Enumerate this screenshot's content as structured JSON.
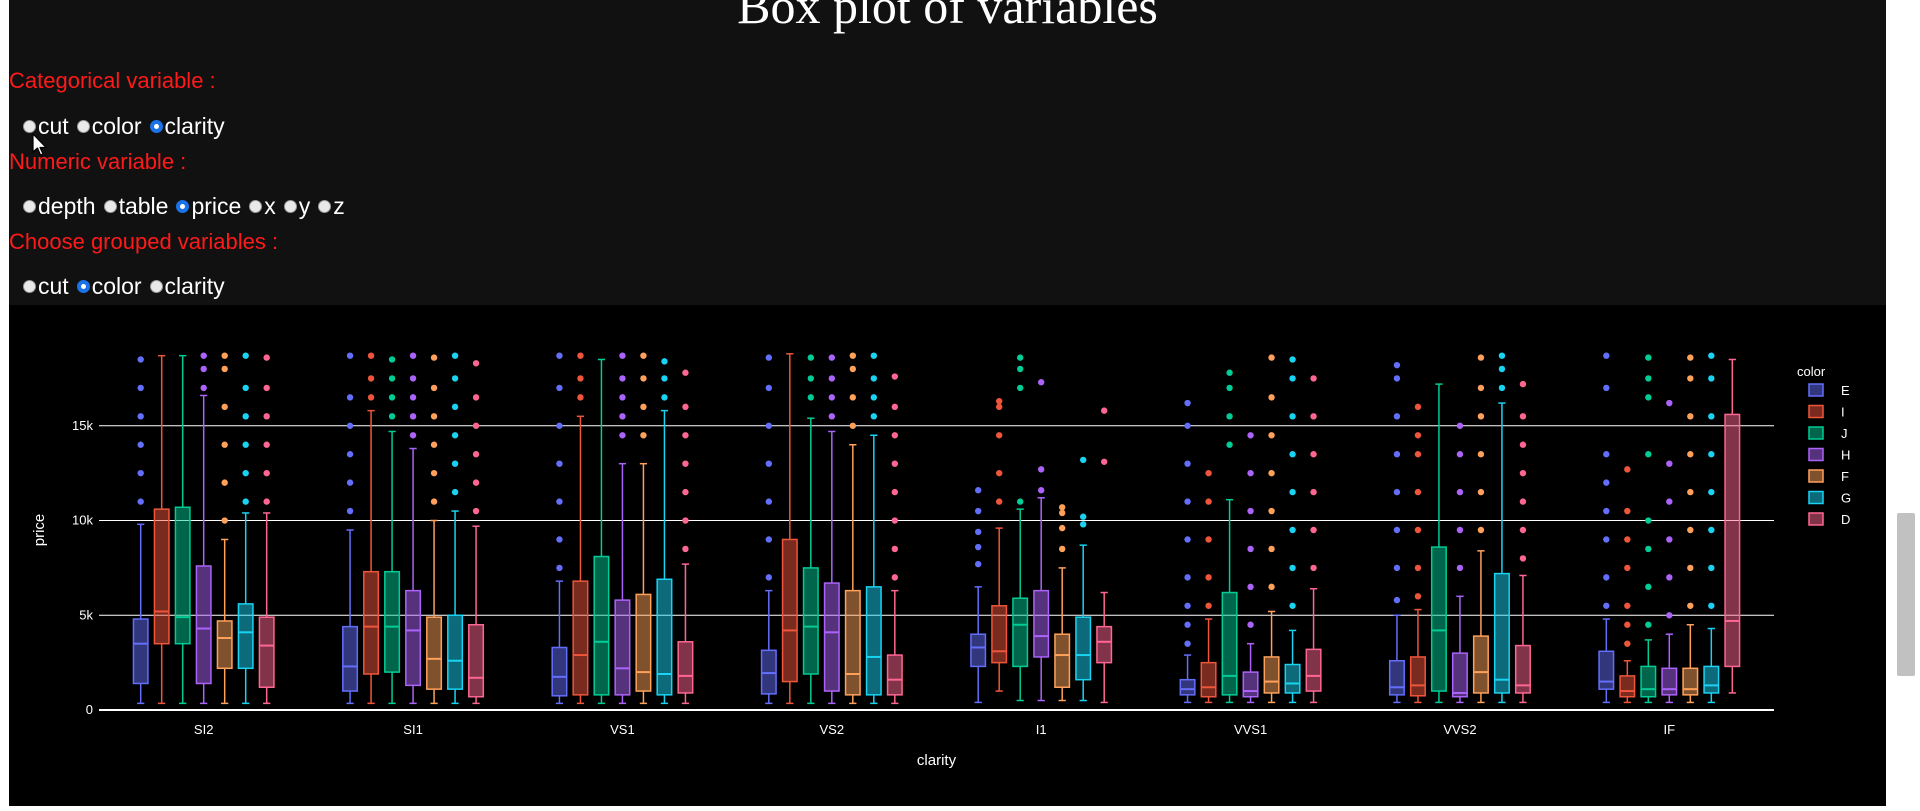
{
  "page": {
    "title": "Box plot of variables",
    "categorical_label": "Categorical variable :",
    "categorical_options": [
      "cut",
      "color",
      "clarity"
    ],
    "categorical_selected": "clarity",
    "numeric_label": "Numeric variable :",
    "numeric_options": [
      "depth",
      "table",
      "price",
      "x",
      "y",
      "z"
    ],
    "numeric_selected": "price",
    "group_label": "Choose grouped variables :",
    "group_options": [
      "cut",
      "color",
      "clarity"
    ],
    "group_selected": "color"
  },
  "chart_data": {
    "type": "box",
    "xlabel": "clarity",
    "ylabel": "price",
    "legend_title": "color",
    "legend_position": "top-right",
    "grid": true,
    "ylim": [
      0,
      19000
    ],
    "yticks": [
      0,
      5000,
      10000,
      15000
    ],
    "ytick_labels": [
      "0",
      "5k",
      "10k",
      "15k"
    ],
    "categories": [
      "SI2",
      "SI1",
      "VS1",
      "VS2",
      "I1",
      "VVS1",
      "VVS2",
      "IF"
    ],
    "series": [
      {
        "name": "E",
        "color": "#636efa",
        "boxes": [
          {
            "q1": 1400,
            "median": 3500,
            "q3": 4800,
            "lower": 350,
            "upper": 9800,
            "outliers": [
              11000,
              12500,
              14000,
              15500,
              17000,
              18500
            ]
          },
          {
            "q1": 1000,
            "median": 2300,
            "q3": 4400,
            "lower": 350,
            "upper": 9500,
            "outliers": [
              10500,
              12000,
              13500,
              15000,
              16500,
              18700
            ]
          },
          {
            "q1": 750,
            "median": 1750,
            "q3": 3300,
            "lower": 350,
            "upper": 6800,
            "outliers": [
              7500,
              9000,
              11000,
              13000,
              15000,
              17000,
              18700
            ]
          },
          {
            "q1": 850,
            "median": 1950,
            "q3": 3150,
            "lower": 350,
            "upper": 6300,
            "outliers": [
              7000,
              9000,
              11000,
              13000,
              15000,
              17000,
              18600
            ]
          },
          {
            "q1": 2300,
            "median": 3300,
            "q3": 4000,
            "lower": 400,
            "upper": 6500,
            "outliers": [
              7700,
              8600,
              9400,
              10500,
              11600
            ]
          },
          {
            "q1": 800,
            "median": 1100,
            "q3": 1600,
            "lower": 400,
            "upper": 2900,
            "outliers": [
              3500,
              4500,
              5500,
              7000,
              9000,
              11000,
              13000,
              15000,
              16200
            ]
          },
          {
            "q1": 800,
            "median": 1200,
            "q3": 2600,
            "lower": 400,
            "upper": 5000,
            "outliers": [
              5800,
              7500,
              9500,
              11500,
              13500,
              15500,
              17500,
              18200
            ]
          },
          {
            "q1": 1100,
            "median": 1500,
            "q3": 3100,
            "lower": 400,
            "upper": 4800,
            "outliers": [
              5500,
              7000,
              9000,
              10500,
              12000,
              13500,
              17000,
              18700
            ]
          }
        ]
      },
      {
        "name": "I",
        "color": "#ef553b",
        "boxes": [
          {
            "q1": 3500,
            "median": 5200,
            "q3": 10600,
            "lower": 350,
            "upper": 18700,
            "outliers": []
          },
          {
            "q1": 1900,
            "median": 4400,
            "q3": 7300,
            "lower": 350,
            "upper": 15800,
            "outliers": [
              16500,
              17500,
              18700
            ]
          },
          {
            "q1": 800,
            "median": 2900,
            "q3": 6800,
            "lower": 350,
            "upper": 15500,
            "outliers": [
              16500,
              17500,
              18700
            ]
          },
          {
            "q1": 1500,
            "median": 4200,
            "q3": 9000,
            "lower": 350,
            "upper": 18800,
            "outliers": []
          },
          {
            "q1": 2500,
            "median": 3100,
            "q3": 5500,
            "lower": 1000,
            "upper": 9600,
            "outliers": [
              11000,
              12500,
              14500,
              16000,
              16300
            ]
          },
          {
            "q1": 700,
            "median": 1200,
            "q3": 2500,
            "lower": 400,
            "upper": 4800,
            "outliers": [
              5500,
              7000,
              9000,
              11000,
              12500
            ]
          },
          {
            "q1": 750,
            "median": 1300,
            "q3": 2800,
            "lower": 400,
            "upper": 5300,
            "outliers": [
              6000,
              7500,
              9500,
              11500,
              13500,
              14500,
              16000
            ]
          },
          {
            "q1": 700,
            "median": 1000,
            "q3": 1800,
            "lower": 400,
            "upper": 2600,
            "outliers": [
              3500,
              4500,
              5500,
              7500,
              9000,
              10500,
              12700
            ]
          }
        ]
      },
      {
        "name": "J",
        "color": "#00cc96",
        "boxes": [
          {
            "q1": 3500,
            "median": 4900,
            "q3": 10700,
            "lower": 350,
            "upper": 18700,
            "outliers": []
          },
          {
            "q1": 2000,
            "median": 4400,
            "q3": 7300,
            "lower": 350,
            "upper": 14700,
            "outliers": [
              15500,
              16500,
              17500,
              18500
            ]
          },
          {
            "q1": 800,
            "median": 3600,
            "q3": 8100,
            "lower": 350,
            "upper": 18500,
            "outliers": []
          },
          {
            "q1": 1900,
            "median": 4400,
            "q3": 7500,
            "lower": 350,
            "upper": 15400,
            "outliers": [
              16500,
              17500,
              18600
            ]
          },
          {
            "q1": 2300,
            "median": 4500,
            "q3": 5900,
            "lower": 500,
            "upper": 10600,
            "outliers": [
              11000,
              17000,
              18000,
              18600
            ]
          },
          {
            "q1": 800,
            "median": 1800,
            "q3": 6200,
            "lower": 400,
            "upper": 11100,
            "outliers": [
              14000,
              15500,
              17000,
              17800
            ]
          },
          {
            "q1": 1000,
            "median": 4200,
            "q3": 8600,
            "lower": 400,
            "upper": 17200,
            "outliers": []
          },
          {
            "q1": 700,
            "median": 1100,
            "q3": 2300,
            "lower": 400,
            "upper": 3700,
            "outliers": [
              4500,
              6500,
              8500,
              10000,
              13500,
              16500,
              17500,
              18600
            ]
          }
        ]
      },
      {
        "name": "H",
        "color": "#ab63fa",
        "boxes": [
          {
            "q1": 1400,
            "median": 4300,
            "q3": 7600,
            "lower": 350,
            "upper": 16600,
            "outliers": [
              17000,
              18000,
              18700
            ]
          },
          {
            "q1": 1300,
            "median": 4200,
            "q3": 6300,
            "lower": 350,
            "upper": 13800,
            "outliers": [
              14500,
              15500,
              16500,
              17500,
              18700
            ]
          },
          {
            "q1": 800,
            "median": 2200,
            "q3": 5800,
            "lower": 350,
            "upper": 13000,
            "outliers": [
              14500,
              15500,
              16500,
              17500,
              18700
            ]
          },
          {
            "q1": 1000,
            "median": 4100,
            "q3": 6700,
            "lower": 350,
            "upper": 14700,
            "outliers": [
              15500,
              16500,
              17500,
              18600
            ]
          },
          {
            "q1": 2800,
            "median": 3900,
            "q3": 6300,
            "lower": 500,
            "upper": 11200,
            "outliers": [
              11600,
              12700,
              17300
            ]
          },
          {
            "q1": 700,
            "median": 1000,
            "q3": 2000,
            "lower": 400,
            "upper": 3500,
            "outliers": [
              4500,
              6500,
              8500,
              10500,
              12500,
              14500
            ]
          },
          {
            "q1": 700,
            "median": 900,
            "q3": 3000,
            "lower": 400,
            "upper": 6000,
            "outliers": [
              7500,
              9500,
              11500,
              13500,
              15000
            ]
          },
          {
            "q1": 800,
            "median": 1100,
            "q3": 2200,
            "lower": 400,
            "upper": 4000,
            "outliers": [
              5000,
              7000,
              9000,
              11000,
              13000,
              16200
            ]
          }
        ]
      },
      {
        "name": "F",
        "color": "#ffa15a",
        "boxes": [
          {
            "q1": 2200,
            "median": 3800,
            "q3": 4700,
            "lower": 350,
            "upper": 9000,
            "outliers": [
              10000,
              12000,
              14000,
              16000,
              18000,
              18700
            ]
          },
          {
            "q1": 1100,
            "median": 2700,
            "q3": 4900,
            "lower": 350,
            "upper": 10000,
            "outliers": [
              11000,
              12500,
              14000,
              15500,
              17000,
              18600
            ]
          },
          {
            "q1": 1000,
            "median": 2000,
            "q3": 6100,
            "lower": 350,
            "upper": 13000,
            "outliers": [
              14500,
              16000,
              17500,
              18700
            ]
          },
          {
            "q1": 800,
            "median": 1900,
            "q3": 6300,
            "lower": 350,
            "upper": 14000,
            "outliers": [
              15000,
              16500,
              18000,
              18700
            ]
          },
          {
            "q1": 1200,
            "median": 2900,
            "q3": 4000,
            "lower": 500,
            "upper": 7500,
            "outliers": [
              8500,
              9600,
              10400,
              10700
            ]
          },
          {
            "q1": 900,
            "median": 1500,
            "q3": 2800,
            "lower": 400,
            "upper": 5200,
            "outliers": [
              6500,
              8500,
              10500,
              12500,
              14500,
              16500,
              18600
            ]
          },
          {
            "q1": 900,
            "median": 2000,
            "q3": 3900,
            "lower": 400,
            "upper": 8400,
            "outliers": [
              9500,
              11500,
              13500,
              15500,
              17000,
              18600
            ]
          },
          {
            "q1": 800,
            "median": 1100,
            "q3": 2200,
            "lower": 400,
            "upper": 4500,
            "outliers": [
              5500,
              7500,
              9500,
              11500,
              13500,
              15500,
              17500,
              18600
            ]
          }
        ]
      },
      {
        "name": "G",
        "color": "#19d3f3",
        "boxes": [
          {
            "q1": 2200,
            "median": 4100,
            "q3": 5600,
            "lower": 350,
            "upper": 10400,
            "outliers": [
              11000,
              12500,
              14000,
              15500,
              17000,
              18700
            ]
          },
          {
            "q1": 1100,
            "median": 2600,
            "q3": 5000,
            "lower": 350,
            "upper": 10500,
            "outliers": [
              11500,
              13000,
              14500,
              16000,
              17500,
              18700
            ]
          },
          {
            "q1": 800,
            "median": 1900,
            "q3": 6900,
            "lower": 350,
            "upper": 15800,
            "outliers": [
              16500,
              17500,
              18400
            ]
          },
          {
            "q1": 800,
            "median": 2800,
            "q3": 6500,
            "lower": 350,
            "upper": 14500,
            "outliers": [
              15500,
              16500,
              17500,
              18700
            ]
          },
          {
            "q1": 1600,
            "median": 2900,
            "q3": 4900,
            "lower": 500,
            "upper": 8700,
            "outliers": [
              9800,
              10200,
              13200
            ]
          },
          {
            "q1": 900,
            "median": 1400,
            "q3": 2400,
            "lower": 400,
            "upper": 4200,
            "outliers": [
              5500,
              7500,
              9500,
              11500,
              13500,
              15500,
              17500,
              18500
            ]
          },
          {
            "q1": 900,
            "median": 1600,
            "q3": 7200,
            "lower": 400,
            "upper": 16200,
            "outliers": [
              17000,
              18000,
              18700
            ]
          },
          {
            "q1": 900,
            "median": 1300,
            "q3": 2300,
            "lower": 400,
            "upper": 4300,
            "outliers": [
              5500,
              7500,
              9500,
              11500,
              13500,
              15500,
              17500,
              18700
            ]
          }
        ]
      },
      {
        "name": "D",
        "color": "#ff6692",
        "boxes": [
          {
            "q1": 1200,
            "median": 3400,
            "q3": 4900,
            "lower": 350,
            "upper": 10400,
            "outliers": [
              11000,
              12500,
              14000,
              15500,
              17000,
              18600
            ]
          },
          {
            "q1": 700,
            "median": 1700,
            "q3": 4500,
            "lower": 350,
            "upper": 9700,
            "outliers": [
              10500,
              12000,
              13500,
              15000,
              16500,
              18300
            ]
          },
          {
            "q1": 900,
            "median": 1800,
            "q3": 3600,
            "lower": 350,
            "upper": 7700,
            "outliers": [
              8500,
              10000,
              11500,
              13000,
              14500,
              16000,
              17800
            ]
          },
          {
            "q1": 800,
            "median": 1600,
            "q3": 2900,
            "lower": 350,
            "upper": 6300,
            "outliers": [
              7000,
              8500,
              10000,
              11500,
              13000,
              14500,
              16000,
              17600
            ]
          },
          {
            "q1": 2500,
            "median": 3600,
            "q3": 4400,
            "lower": 400,
            "upper": 6200,
            "outliers": [
              13100,
              15800
            ]
          },
          {
            "q1": 1000,
            "median": 1800,
            "q3": 3200,
            "lower": 400,
            "upper": 6400,
            "outliers": [
              7500,
              9500,
              11500,
              13500,
              15500,
              17500
            ]
          },
          {
            "q1": 900,
            "median": 1300,
            "q3": 3400,
            "lower": 400,
            "upper": 7100,
            "outliers": [
              8000,
              9500,
              11000,
              12500,
              14000,
              15500,
              17200
            ]
          },
          {
            "q1": 2300,
            "median": 4700,
            "q3": 15600,
            "lower": 900,
            "upper": 18500,
            "outliers": []
          }
        ]
      }
    ]
  }
}
